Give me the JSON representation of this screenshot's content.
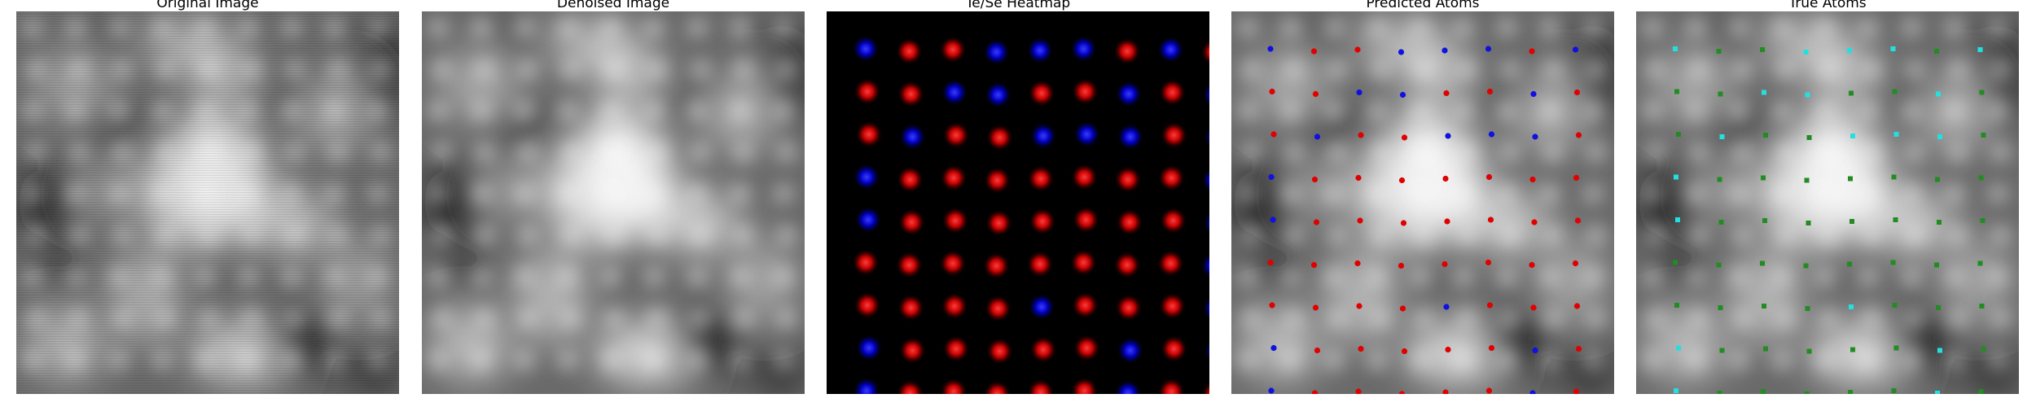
{
  "panels": [
    {
      "title": "Original Image"
    },
    {
      "title": "Denoised Image"
    },
    {
      "title": "Te/Se Heatmap"
    },
    {
      "title": "Predicted Atoms"
    },
    {
      "title": "True Atoms"
    }
  ],
  "colors": {
    "te": "#e00000",
    "se": "#1010e0",
    "true_se": "#22e0e0",
    "true_te": "#228b22",
    "heatmap_bg": "#000000"
  },
  "atom_legend": {
    "predicted": {
      "red": "Te",
      "blue": "Se"
    },
    "true": {
      "green": "Te",
      "cyan": "Se"
    }
  }
}
